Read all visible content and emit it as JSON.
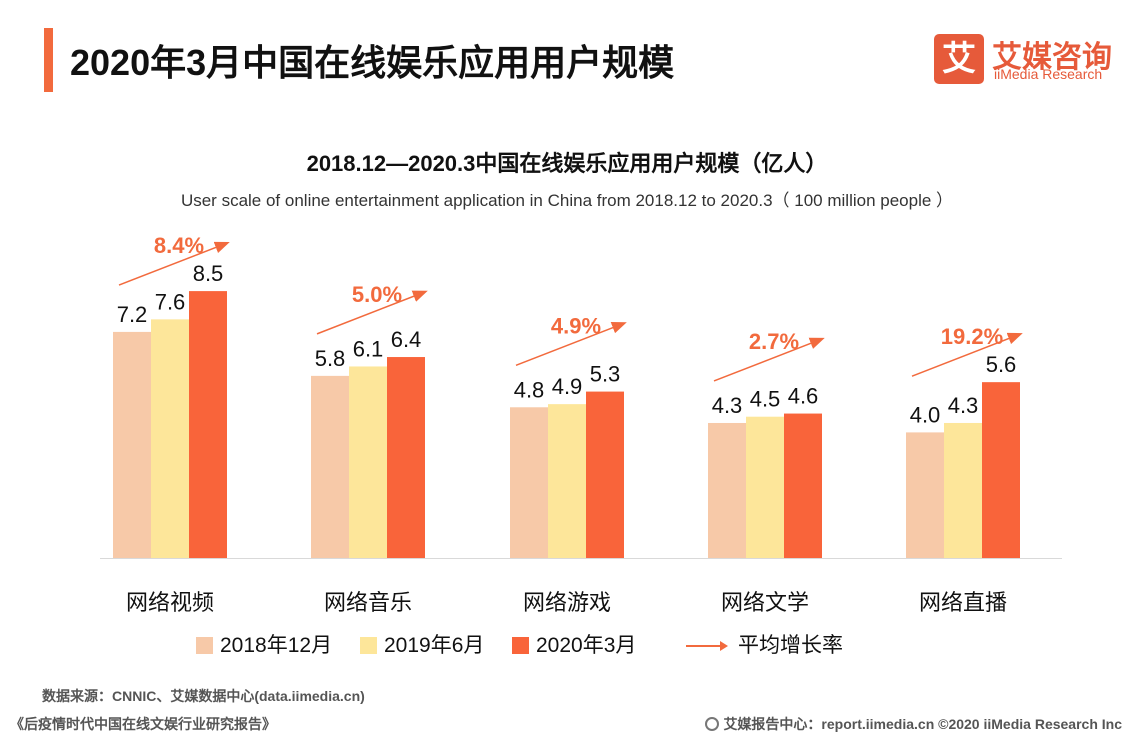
{
  "page": {
    "title": "2020年3月中国在线娱乐应用用户规模",
    "brand_cn": "艾媒咨询",
    "brand_en": "iiMedia Research",
    "brand_glyph": "艾",
    "source": "数据来源：CNNIC、艾媒数据中心(data.iimedia.cn)",
    "footer_left": "《后疫情时代中国在线文娱行业研究报告》",
    "footer_right": "艾媒报告中心：report.iimedia.cn  ©2020  iiMedia Research  Inc",
    "growth_legend_label": "平均增长率"
  },
  "chart_data": {
    "type": "bar",
    "title": "2018.12—2020.3中国在线娱乐应用用户规模（亿人）",
    "subtitle": "User scale of online entertainment application in China  from 2018.12 to 2020.3（ 100 million people ）",
    "categories": [
      "网络视频",
      "网络音乐",
      "网络游戏",
      "网络文学",
      "网络直播"
    ],
    "series": [
      {
        "name": "2018年12月",
        "color": "#f7c9a8",
        "values": [
          7.2,
          5.8,
          4.8,
          4.3,
          4.0
        ]
      },
      {
        "name": "2019年6月",
        "color": "#fde69a",
        "values": [
          7.6,
          6.1,
          4.9,
          4.5,
          4.3
        ]
      },
      {
        "name": "2020年3月",
        "color": "#f9643a",
        "values": [
          8.5,
          6.4,
          5.3,
          4.6,
          5.6
        ]
      }
    ],
    "growth_rates": [
      "8.4%",
      "5.0%",
      "4.9%",
      "2.7%",
      "19.2%"
    ],
    "growth_color": "#f26a3d",
    "ylim": [
      0,
      10
    ],
    "grid": false,
    "legend_position": "bottom"
  }
}
